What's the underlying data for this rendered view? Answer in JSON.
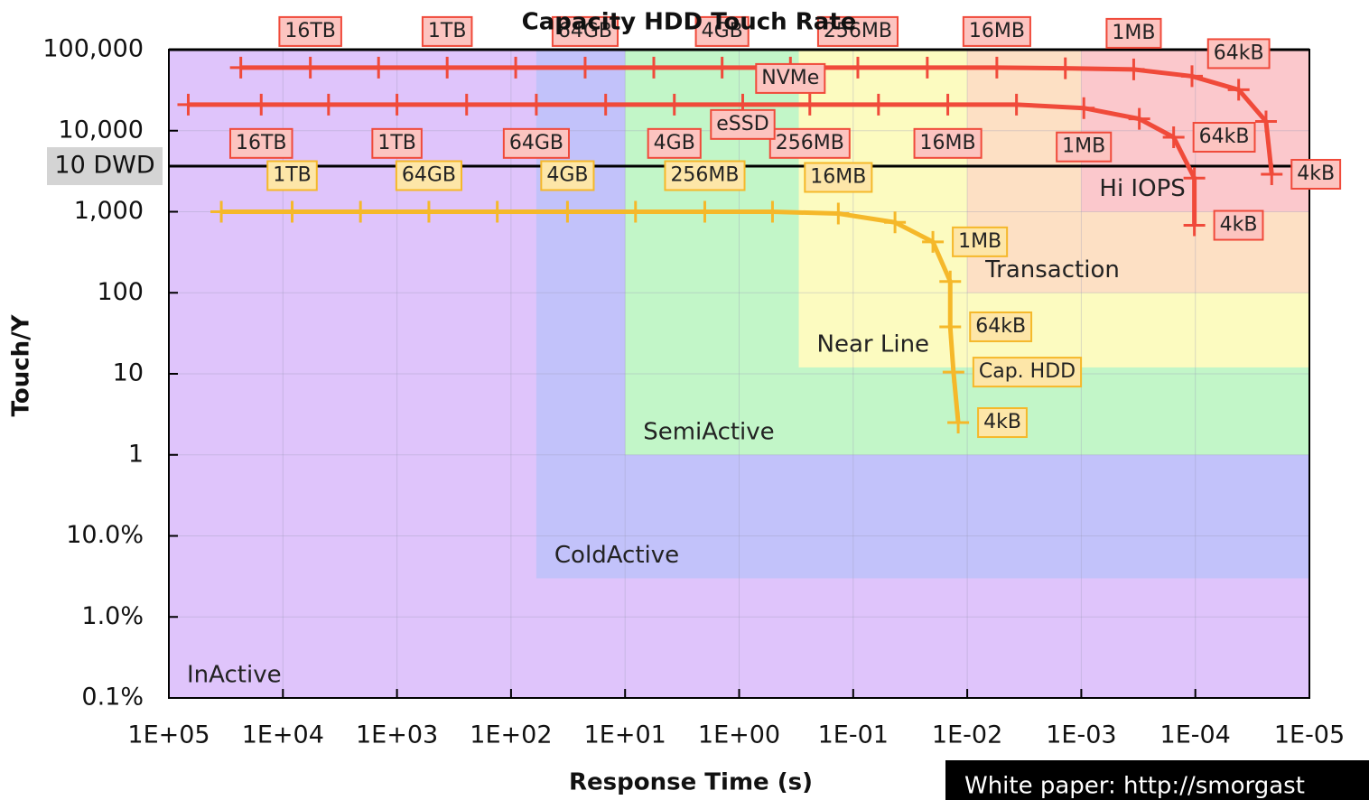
{
  "chart_data": {
    "type": "line",
    "title": "Capacity HDD Touch Rate",
    "xlabel": "Response Time (s)",
    "ylabel": "Touch/Y",
    "xscale": "log",
    "yscale": "log",
    "grid": true,
    "xlim": [
      100000,
      1e-05
    ],
    "ylim": [
      0.001,
      100000
    ],
    "xticks": [
      {
        "value": 100000,
        "label": "1E+05"
      },
      {
        "value": 10000,
        "label": "1E+04"
      },
      {
        "value": 1000,
        "label": "1E+03"
      },
      {
        "value": 100,
        "label": "1E+02"
      },
      {
        "value": 10,
        "label": "1E+01"
      },
      {
        "value": 1,
        "label": "1E+00"
      },
      {
        "value": 0.1,
        "label": "1E-01"
      },
      {
        "value": 0.01,
        "label": "1E-02"
      },
      {
        "value": 0.001,
        "label": "1E-03"
      },
      {
        "value": 0.0001,
        "label": "1E-04"
      },
      {
        "value": 1e-05,
        "label": "1E-05"
      }
    ],
    "yticks": [
      {
        "value": 0.001,
        "label": "0.1%"
      },
      {
        "value": 0.01,
        "label": "1.0%"
      },
      {
        "value": 0.1,
        "label": "10.0%"
      },
      1,
      10,
      100,
      {
        "value": 1000,
        "label": "1,000"
      },
      {
        "value": 10000,
        "label": "10,000"
      },
      {
        "value": 100000,
        "label": "100,000"
      }
    ],
    "regions": [
      {
        "name": "InActive",
        "color": "#dfc4fb",
        "xlim": [
          100000,
          1e-05
        ],
        "ylim": [
          0.001,
          100000
        ]
      },
      {
        "name": "ColdActive",
        "color": "#c2c2fa",
        "xlim": [
          60,
          1e-05
        ],
        "ylim": [
          0.03,
          100000
        ]
      },
      {
        "name": "SemiActive",
        "color": "#c2f6c8",
        "xlim": [
          10,
          1e-05
        ],
        "ylim": [
          1,
          100000
        ]
      },
      {
        "name": "Near Line",
        "color": "#fcfbc0",
        "xlim": [
          0.3,
          1e-05
        ],
        "ylim": [
          12,
          100000
        ]
      },
      {
        "name": "Transaction",
        "color": "#fde0c4",
        "xlim": [
          0.01,
          1e-05
        ],
        "ylim": [
          100,
          100000
        ]
      },
      {
        "name": "Hi IOPS",
        "color": "#fbc8cc",
        "xlim": [
          0.001,
          1e-05
        ],
        "ylim": [
          1000,
          100000
        ]
      }
    ],
    "reference_lines": [
      {
        "label": "10 DWD",
        "value": 3650,
        "color": "#000000"
      }
    ],
    "series": [
      {
        "name": "NVMe",
        "color": "#f04a3a",
        "box_color": "#fcc4c0",
        "x": [
          23400,
          5750,
          1450,
          363,
          91,
          22.4,
          5.6,
          1.41,
          0.355,
          0.091,
          0.0224,
          0.0055,
          0.00138,
          0.000347,
          0.000107,
          4.17e-05,
          2.4e-05,
          2.14e-05
        ],
        "values": [
          60000,
          60000,
          60000,
          60000,
          60000,
          60000,
          60000,
          60000,
          60000,
          60000,
          60000,
          60000,
          59000,
          57000,
          47000,
          32000,
          13000,
          2900
        ],
        "labels": [
          null,
          "16TB",
          null,
          "1TB",
          null,
          "64GB",
          null,
          "4GB",
          null,
          "256MB",
          null,
          "16MB",
          null,
          "1MB",
          null,
          "64kB",
          null,
          "4kB"
        ]
      },
      {
        "name": "eSSD",
        "color": "#f04a3a",
        "box_color": "#fcc4c0",
        "x": [
          67600,
          15500,
          3980,
          1000,
          245,
          60,
          14.8,
          3.7,
          0.93,
          0.24,
          0.06,
          0.0148,
          0.0037,
          0.00095,
          0.00031,
          0.000155,
          0.000102,
          0.000102
        ],
        "values": [
          21000,
          21000,
          21000,
          21000,
          21000,
          21000,
          21000,
          21000,
          21000,
          21000,
          21000,
          21000,
          21000,
          19000,
          14000,
          8300,
          2600,
          680
        ],
        "labels": [
          null,
          "16TB",
          null,
          "1TB",
          null,
          "64GB",
          null,
          "4GB",
          null,
          "256MB",
          null,
          "16MB",
          null,
          "1MB",
          null,
          "64kB",
          null,
          "4kB"
        ]
      },
      {
        "name": "Cap. HDD",
        "color": "#f5b82a",
        "box_color": "#fde6a8",
        "x": [
          34700,
          8300,
          2090,
          525,
          132,
          32,
          8.1,
          2.0,
          0.51,
          0.135,
          0.043,
          0.02,
          0.0141,
          0.0141,
          0.0132,
          0.012
        ],
        "values": [
          1000,
          1000,
          1000,
          1000,
          1000,
          1000,
          1000,
          1000,
          1000,
          950,
          740,
          425,
          138,
          38,
          10.5,
          2.5
        ],
        "labels": [
          null,
          "1TB",
          null,
          "64GB",
          null,
          "4GB",
          null,
          "256MB",
          null,
          "16MB",
          null,
          "1MB",
          null,
          "64kB",
          null,
          "4kB"
        ]
      }
    ],
    "footer": "White paper: http://smorgast"
  }
}
